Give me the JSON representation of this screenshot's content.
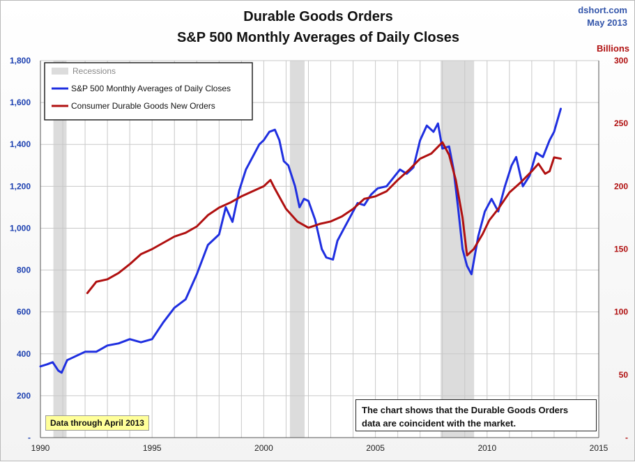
{
  "header": {
    "title_line1": "Durable Goods Orders",
    "title_line2": "S&P 500 Monthly Averages of Daily Closes",
    "source_line1": "dshort.com",
    "source_line2": "May 2013"
  },
  "notes": {
    "through": "Data through April 2013",
    "commentary_line1": "The chart shows that the Durable Goods Orders",
    "commentary_line2": "data are coincident with the market."
  },
  "colors": {
    "sp500": "#1f2fe0",
    "durable": "#b01010",
    "recession": "#dcdcdc",
    "grid": "#c8c8c8"
  },
  "chart_data": {
    "type": "line",
    "title": "Durable Goods Orders\nS&P 500 Monthly Averages of Daily Closes",
    "x_ticks": [
      "1990",
      "1995",
      "2000",
      "2005",
      "2010",
      "2015"
    ],
    "xlim": [
      1990,
      2015
    ],
    "y_left": {
      "ticks": [
        "-",
        "200",
        "400",
        "600",
        "800",
        "1,000",
        "1,200",
        "1,400",
        "1,600",
        "1,800"
      ],
      "lim": [
        0,
        1800
      ]
    },
    "y_right": {
      "label": "Billions",
      "ticks": [
        "-",
        "50",
        "100",
        "150",
        "200",
        "250",
        "300"
      ],
      "lim": [
        0,
        300
      ]
    },
    "grid": true,
    "legend_position": "top-left",
    "legend": [
      "Recessions",
      "S&P 500 Monthly Averages of Daily Closes",
      "Consumer Durable Goods New Orders"
    ],
    "recessions": [
      [
        1990.58,
        1991.17
      ],
      [
        2001.17,
        2001.83
      ],
      [
        2007.92,
        2009.42
      ]
    ],
    "series": [
      {
        "name": "S&P 500 Monthly Averages of Daily Closes",
        "axis": "left",
        "x": [
          1990.0,
          1990.3,
          1990.55,
          1990.8,
          1990.95,
          1991.2,
          1991.5,
          1992.0,
          1992.5,
          1993.0,
          1993.5,
          1994.0,
          1994.5,
          1995.0,
          1995.5,
          1996.0,
          1996.5,
          1997.0,
          1997.5,
          1998.0,
          1998.3,
          1998.6,
          1998.9,
          1999.2,
          1999.5,
          1999.8,
          2000.0,
          2000.25,
          2000.5,
          2000.7,
          2000.9,
          2001.1,
          2001.4,
          2001.6,
          2001.8,
          2002.0,
          2002.3,
          2002.6,
          2002.8,
          2003.1,
          2003.3,
          2003.6,
          2003.9,
          2004.2,
          2004.5,
          2004.8,
          2005.1,
          2005.5,
          2005.8,
          2006.1,
          2006.4,
          2006.7,
          2007.0,
          2007.3,
          2007.6,
          2007.8,
          2008.0,
          2008.3,
          2008.5,
          2008.7,
          2008.9,
          2009.1,
          2009.3,
          2009.6,
          2009.9,
          2010.2,
          2010.5,
          2010.8,
          2011.1,
          2011.3,
          2011.6,
          2011.9,
          2012.2,
          2012.5,
          2012.8,
          2013.0,
          2013.3
        ],
        "values": [
          340,
          350,
          360,
          320,
          310,
          370,
          385,
          410,
          410,
          440,
          450,
          470,
          455,
          470,
          550,
          620,
          660,
          780,
          920,
          970,
          1100,
          1030,
          1180,
          1280,
          1340,
          1400,
          1420,
          1460,
          1470,
          1420,
          1320,
          1300,
          1200,
          1100,
          1140,
          1130,
          1040,
          900,
          860,
          850,
          940,
          1000,
          1060,
          1120,
          1110,
          1160,
          1190,
          1200,
          1240,
          1280,
          1260,
          1290,
          1420,
          1490,
          1460,
          1500,
          1380,
          1390,
          1280,
          1100,
          900,
          820,
          780,
          960,
          1080,
          1140,
          1080,
          1200,
          1300,
          1340,
          1200,
          1250,
          1360,
          1340,
          1420,
          1460,
          1570
        ]
      },
      {
        "name": "Consumer Durable Goods New Orders",
        "axis": "right",
        "x": [
          1992.1,
          1992.5,
          1993.0,
          1993.5,
          1994.0,
          1994.5,
          1995.0,
          1995.5,
          1996.0,
          1996.5,
          1997.0,
          1997.5,
          1998.0,
          1998.5,
          1999.0,
          1999.5,
          2000.0,
          2000.3,
          2000.5,
          2000.75,
          2001.0,
          2001.5,
          2002.0,
          2002.5,
          2003.0,
          2003.5,
          2004.0,
          2004.5,
          2005.0,
          2005.5,
          2006.0,
          2006.5,
          2007.0,
          2007.5,
          2008.0,
          2008.3,
          2008.6,
          2008.9,
          2009.1,
          2009.4,
          2009.8,
          2010.1,
          2010.5,
          2011.0,
          2011.5,
          2012.0,
          2012.3,
          2012.6,
          2012.8,
          2013.0,
          2013.3
        ],
        "values": [
          115,
          124,
          126,
          131,
          138,
          146,
          150,
          155,
          160,
          163,
          168,
          177,
          183,
          187,
          192,
          196,
          200,
          205,
          198,
          190,
          182,
          172,
          167,
          170,
          172,
          176,
          182,
          190,
          192,
          196,
          205,
          213,
          222,
          226,
          235,
          225,
          205,
          175,
          145,
          150,
          162,
          173,
          182,
          195,
          203,
          212,
          218,
          210,
          212,
          223,
          222
        ]
      }
    ]
  }
}
